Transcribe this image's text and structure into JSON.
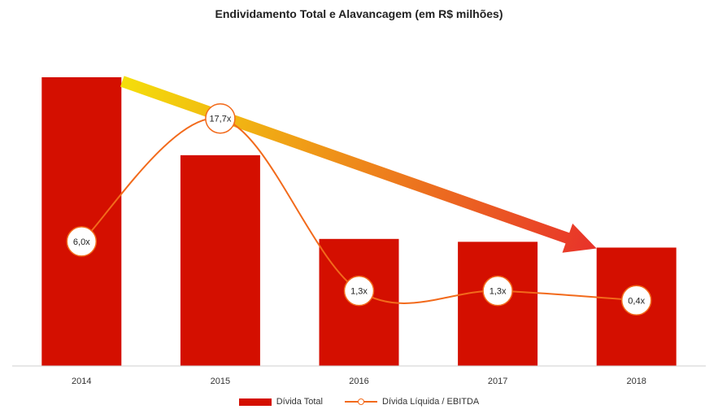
{
  "chart_data": {
    "type": "bar",
    "title": "Endividamento Total e Alavancagem (em R$ milhões)",
    "categories": [
      "2014",
      "2015",
      "2016",
      "2017",
      "2018"
    ],
    "series": [
      {
        "name": "Dívida Total",
        "kind": "bar",
        "color": "#d40f00",
        "values": [
          100,
          73,
          44,
          43,
          41
        ]
      },
      {
        "name": "Dívida Líquida / EBITDA",
        "kind": "line",
        "color": "#f26a1b",
        "values": [
          6.0,
          17.7,
          1.3,
          1.3,
          0.4
        ],
        "labels": [
          "6,0x",
          "17,7x",
          "1,3x",
          "1,3x",
          "0,4x"
        ]
      }
    ],
    "bar_ylim": [
      0,
      100
    ],
    "line_ylim": [
      -6,
      20
    ],
    "annotations": [
      {
        "type": "trend-arrow",
        "from": "2014",
        "to": "2018",
        "colors": [
          "#f4de0b",
          "#e8322a"
        ]
      }
    ],
    "legend": [
      "Dívida Total",
      "Dívida Líquida / EBITDA"
    ],
    "legend_position": "bottom",
    "grid": false
  }
}
